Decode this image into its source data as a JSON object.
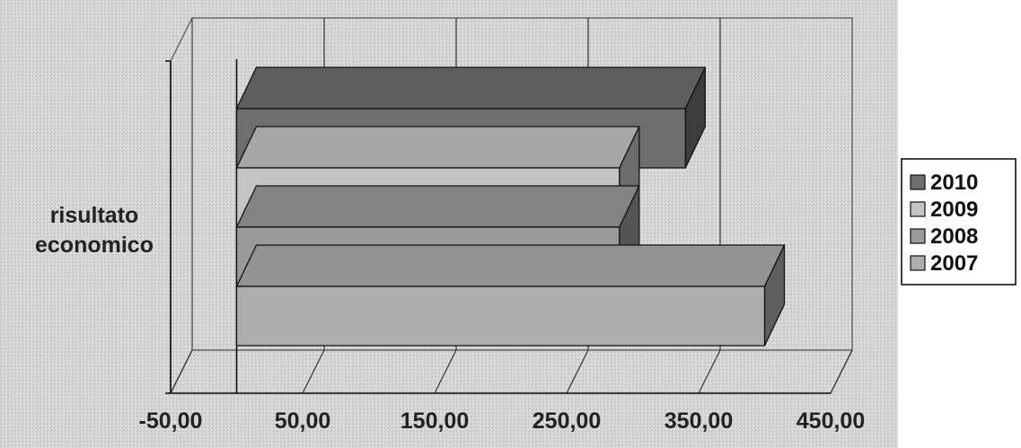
{
  "chart_data": {
    "type": "bar",
    "orientation": "horizontal",
    "three_d": true,
    "categories": [
      "risultato economico"
    ],
    "category_label_lines": [
      "risultato",
      "economico"
    ],
    "series": [
      {
        "name": "2010",
        "values": [
          340
        ],
        "color": "#6e6e6e"
      },
      {
        "name": "2009",
        "values": [
          290
        ],
        "color": "#c4c4c4"
      },
      {
        "name": "2008",
        "values": [
          290
        ],
        "color": "#9a9a9a"
      },
      {
        "name": "2007",
        "values": [
          400
        ],
        "color": "#adadad"
      }
    ],
    "x_ticks": [
      "-50,00",
      "50,00",
      "150,00",
      "250,00",
      "350,00",
      "450,00"
    ],
    "x_tick_values": [
      -50,
      50,
      150,
      250,
      350,
      450
    ],
    "xlim": [
      -50,
      450
    ],
    "grid": true,
    "legend": {
      "position": "right",
      "order": [
        "2010",
        "2009",
        "2008",
        "2007"
      ]
    },
    "background": "#d6d6d6"
  }
}
